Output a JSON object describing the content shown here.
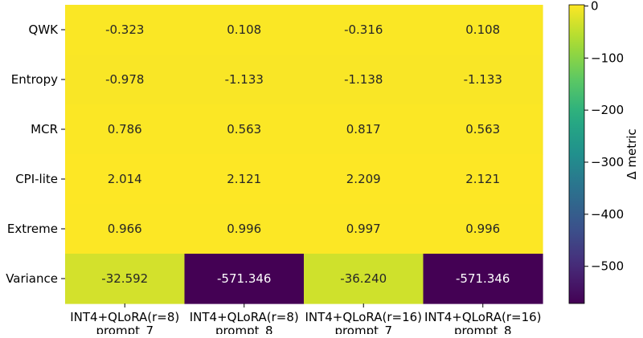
{
  "chart_data": {
    "type": "heatmap",
    "title": "",
    "xlabel": "",
    "ylabel": "",
    "x_categories": [
      {
        "line1": "INT4+QLoRA(r=8)",
        "line2": "prompt_7"
      },
      {
        "line1": "INT4+QLoRA(r=8)",
        "line2": "prompt_8"
      },
      {
        "line1": "INT4+QLoRA(r=16)",
        "line2": "prompt_7"
      },
      {
        "line1": "INT4+QLoRA(r=16)",
        "line2": "prompt_8"
      }
    ],
    "y_categories": [
      "QWK",
      "Entropy",
      "MCR",
      "CPI-lite",
      "Extreme",
      "Variance"
    ],
    "values": [
      [
        -0.323,
        0.108,
        -0.316,
        0.108
      ],
      [
        -0.978,
        -1.133,
        -1.138,
        -1.133
      ],
      [
        0.786,
        0.563,
        0.817,
        0.563
      ],
      [
        2.014,
        2.121,
        2.209,
        2.121
      ],
      [
        0.966,
        0.996,
        0.997,
        0.996
      ],
      [
        -32.592,
        -571.346,
        -36.24,
        -571.346
      ]
    ],
    "labels": [
      [
        "-0.323",
        "0.108",
        "-0.316",
        "0.108"
      ],
      [
        "-0.978",
        "-1.133",
        "-1.138",
        "-1.133"
      ],
      [
        "0.786",
        "0.563",
        "0.817",
        "0.563"
      ],
      [
        "2.014",
        "2.121",
        "2.209",
        "2.121"
      ],
      [
        "0.966",
        "0.996",
        "0.997",
        "0.996"
      ],
      [
        "-32.592",
        "-571.346",
        "-36.240",
        "-571.346"
      ]
    ],
    "colormap": "viridis",
    "colorbar": {
      "label": "Δ metric",
      "min": -571.346,
      "max": 2.209,
      "ticks": [
        0,
        -100,
        -200,
        -300,
        -400,
        -500
      ],
      "tick_labels": [
        "0",
        "−100",
        "−200",
        "−300",
        "−400",
        "−500"
      ]
    },
    "grid": false
  }
}
